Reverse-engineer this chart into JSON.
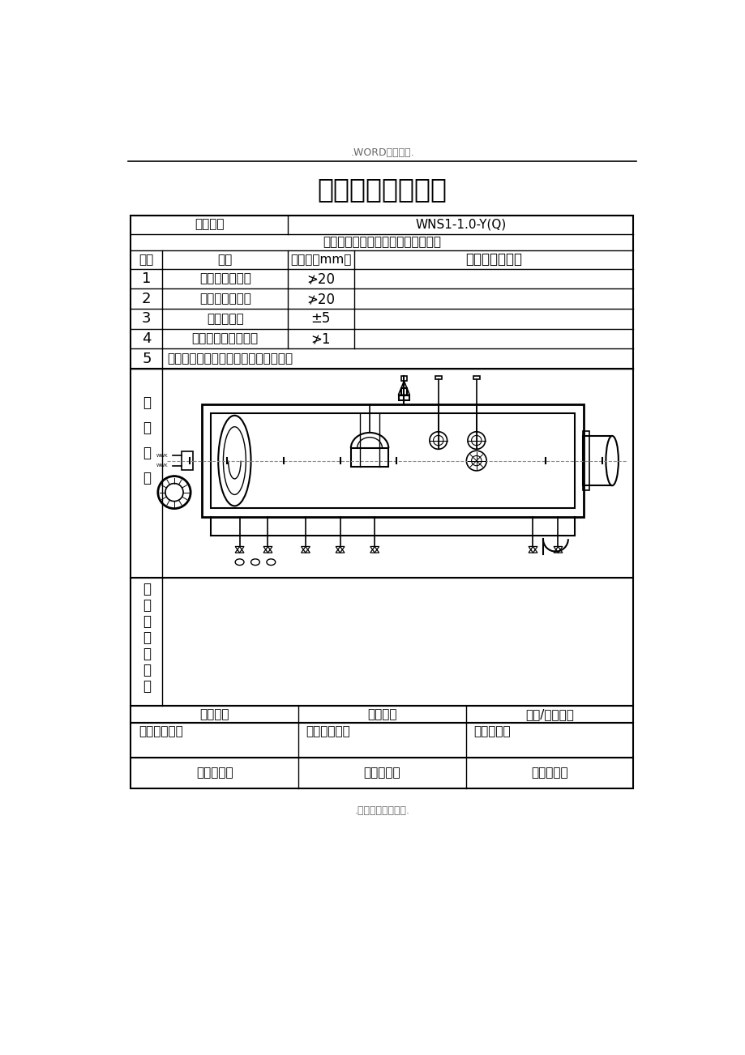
{
  "page_header": ".WORD完美格式.",
  "title": "基础放线检查记录",
  "boiler_label": "锅炉型号",
  "boiler_model": "WNS1-1.0-Y(Q)",
  "subtitle": "锅炉安装基础基准线与建筑轴线距离",
  "table_headers": [
    "序号",
    "项目",
    "允许差（mm）",
    "检　查　结　果"
  ],
  "table_rows": [
    [
      "1",
      "纵向基准中心线",
      "≯20",
      ""
    ],
    [
      "2",
      "横向基准中心线",
      "≯20",
      ""
    ],
    [
      "3",
      "标高基准线",
      "±5",
      ""
    ],
    [
      "4",
      "各基准线间相对偏移",
      "≯1",
      ""
    ],
    [
      "5",
      "辅机、附属设备基础放线检查参照此表",
      "",
      ""
    ]
  ],
  "diag_label": [
    "基",
    "础",
    "简",
    "图"
  ],
  "problem_label": [
    "问",
    "题",
    "及",
    "处",
    "理",
    "意",
    "见"
  ],
  "footer_cols": [
    "施工单位",
    "总包单位",
    "监理/建设单位"
  ],
  "footer_row1": [
    "技术负责人：",
    "专业工程师：",
    "现场代表："
  ],
  "footer_row2": [
    "年　月　日",
    "年　月　日",
    "年　月　日"
  ],
  "page_footer": ".专业知识编辑整理.",
  "bg_color": "#ffffff"
}
